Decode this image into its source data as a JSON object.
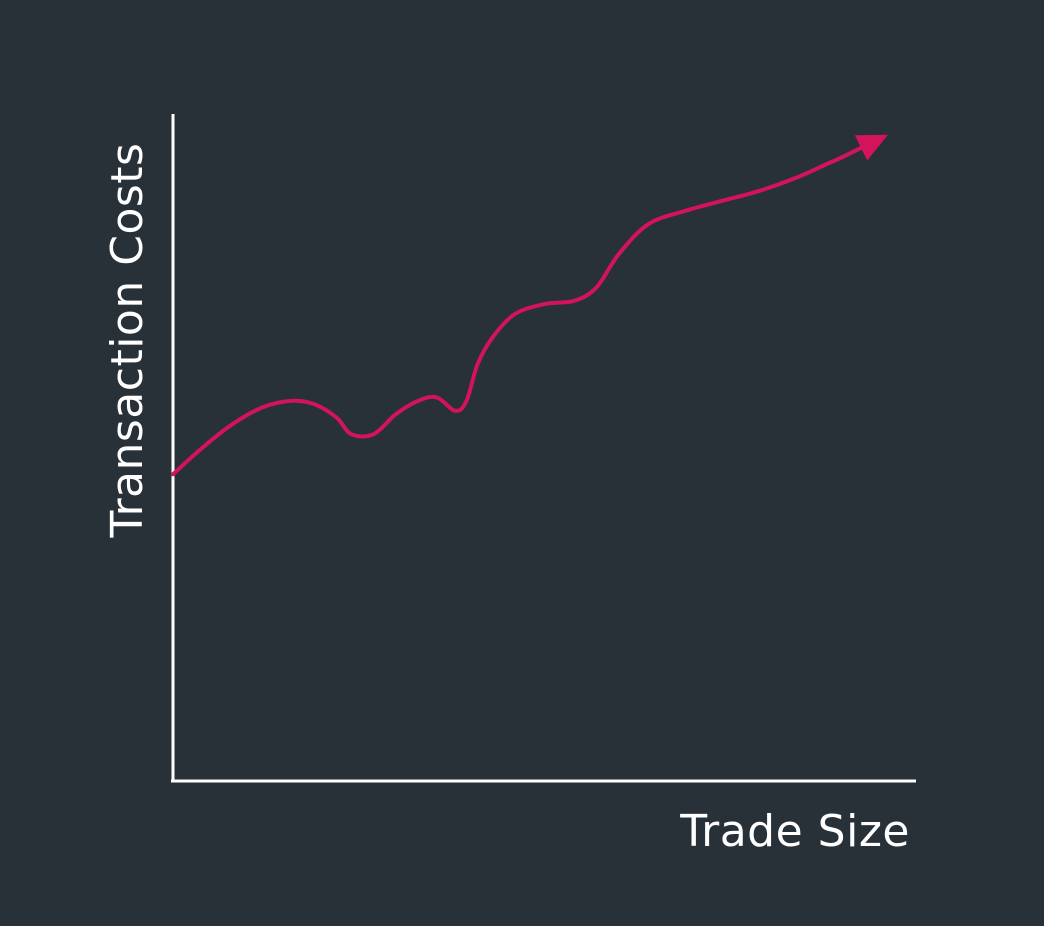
{
  "colors": {
    "background": "#283038",
    "axis": "#ffffff",
    "line": "#d3145a",
    "text": "#ffffff"
  },
  "chart_data": {
    "type": "line",
    "title": "",
    "xlabel": "Trade Size",
    "ylabel": "Transaction Costs",
    "ticks_shown": false,
    "grid": false,
    "end_marker": "arrow",
    "xlim": [
      0,
      100
    ],
    "ylim": [
      0,
      100
    ],
    "series": [
      {
        "name": "",
        "color": "#d3145a",
        "x": [
          0,
          4,
          8,
          12,
          16,
          19,
          22,
          24,
          27,
          30,
          33,
          35.5,
          38,
          39.5,
          41,
          43,
          46,
          50,
          54,
          57,
          60,
          64,
          69,
          74,
          79,
          84,
          88,
          90,
          95.5
        ],
        "y": [
          46,
          50,
          53.5,
          56,
          57,
          56.5,
          54.5,
          52,
          52,
          55,
          57,
          57.5,
          55.5,
          57,
          62.5,
          66.5,
          70,
          71.5,
          72,
          74,
          79,
          83.5,
          85.5,
          87,
          88.5,
          90.5,
          92.5,
          93.5,
          96.5
        ]
      }
    ]
  }
}
